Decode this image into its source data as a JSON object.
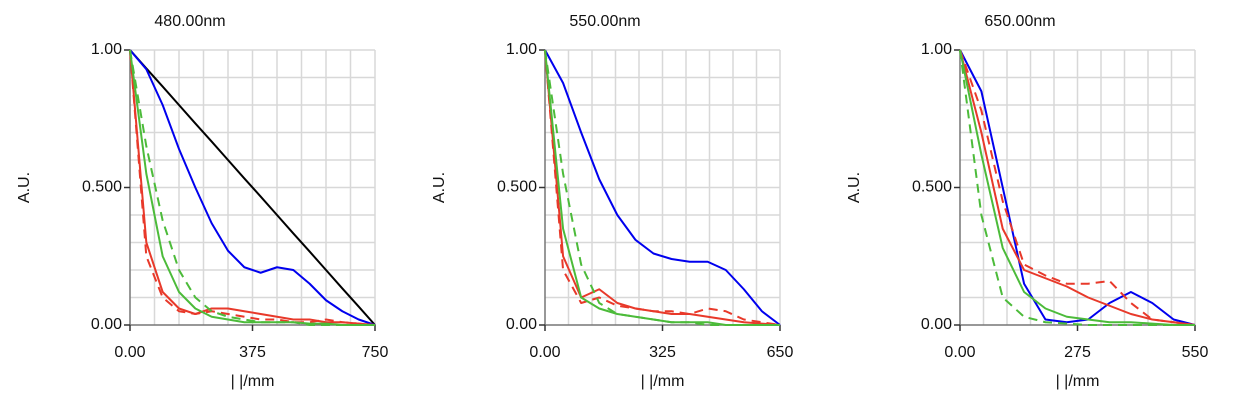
{
  "chart_data": [
    {
      "type": "line",
      "title": "480.00nm",
      "xlabel": "| |/mm",
      "ylabel": "A.U.",
      "x": [
        0,
        50,
        100,
        150,
        200,
        250,
        300,
        350,
        400,
        450,
        500,
        550,
        600,
        650,
        700,
        750
      ],
      "xlim": [
        0,
        750
      ],
      "xticks": [
        {
          "value": 0,
          "label": "0.00"
        },
        375,
        750
      ],
      "xgrid": [
        75,
        150,
        225,
        300,
        375,
        450,
        525,
        600,
        675,
        750
      ],
      "ylim": [
        0,
        1
      ],
      "yticks": [
        {
          "value": 0,
          "label": "0.00"
        },
        {
          "value": 0.5,
          "label": "0.500"
        },
        {
          "value": 1,
          "label": "1.00"
        }
      ],
      "ygrid": [
        0.1,
        0.2,
        0.3,
        0.4,
        0.5,
        0.6,
        0.7,
        0.8,
        0.9,
        1
      ],
      "series": [
        {
          "color": "#000000",
          "dash": false,
          "values": [
            1,
            0.933,
            0.867,
            0.8,
            0.733,
            0.667,
            0.6,
            0.533,
            0.467,
            0.4,
            0.333,
            0.267,
            0.2,
            0.133,
            0.067,
            0
          ]
        },
        {
          "color": "#0000ee",
          "dash": false,
          "values": [
            1,
            0.93,
            0.8,
            0.64,
            0.5,
            0.37,
            0.27,
            0.21,
            0.19,
            0.21,
            0.2,
            0.15,
            0.09,
            0.05,
            0.02,
            0
          ]
        },
        {
          "color": "#e8392a",
          "dash": false,
          "values": [
            1,
            0.3,
            0.12,
            0.06,
            0.04,
            0.06,
            0.06,
            0.05,
            0.04,
            0.03,
            0.02,
            0.02,
            0.01,
            0.01,
            0.005,
            0
          ]
        },
        {
          "color": "#e8392a",
          "dash": true,
          "values": [
            1,
            0.25,
            0.1,
            0.05,
            0.04,
            0.05,
            0.04,
            0.03,
            0.02,
            0.02,
            0.01,
            0.01,
            0.02,
            0.01,
            0.005,
            0
          ]
        },
        {
          "color": "#4cbb3a",
          "dash": false,
          "values": [
            1,
            0.55,
            0.25,
            0.12,
            0.06,
            0.03,
            0.02,
            0.01,
            0.01,
            0.01,
            0.01,
            0.005,
            0.005,
            0,
            0,
            0
          ]
        },
        {
          "color": "#4cbb3a",
          "dash": true,
          "values": [
            1,
            0.65,
            0.38,
            0.2,
            0.1,
            0.05,
            0.03,
            0.02,
            0.01,
            0.01,
            0.01,
            0,
            0,
            0,
            0,
            0
          ]
        }
      ]
    },
    {
      "type": "line",
      "title": "550.00nm",
      "xlabel": "| |/mm",
      "ylabel": "A.U.",
      "x": [
        0,
        50,
        100,
        150,
        200,
        250,
        300,
        350,
        400,
        450,
        500,
        550,
        600,
        650
      ],
      "xlim": [
        0,
        650
      ],
      "xticks": [
        {
          "value": 0,
          "label": "0.00"
        },
        325,
        650
      ],
      "xgrid": [
        65,
        130,
        195,
        260,
        325,
        390,
        455,
        520,
        585,
        650
      ],
      "ylim": [
        0,
        1
      ],
      "yticks": [
        {
          "value": 0,
          "label": "0.00"
        },
        {
          "value": 0.5,
          "label": "0.500"
        },
        {
          "value": 1,
          "label": "1.00"
        }
      ],
      "ygrid": [
        0.1,
        0.2,
        0.3,
        0.4,
        0.5,
        0.6,
        0.7,
        0.8,
        0.9,
        1
      ],
      "series": [
        {
          "color": "#0000ee",
          "dash": false,
          "values": [
            1,
            0.88,
            0.7,
            0.53,
            0.4,
            0.31,
            0.26,
            0.24,
            0.23,
            0.23,
            0.2,
            0.13,
            0.05,
            0
          ]
        },
        {
          "color": "#e8392a",
          "dash": false,
          "values": [
            1,
            0.25,
            0.1,
            0.13,
            0.08,
            0.06,
            0.05,
            0.04,
            0.04,
            0.03,
            0.02,
            0.01,
            0.005,
            0
          ]
        },
        {
          "color": "#e8392a",
          "dash": true,
          "values": [
            1,
            0.2,
            0.08,
            0.1,
            0.07,
            0.06,
            0.05,
            0.05,
            0.04,
            0.06,
            0.05,
            0.02,
            0.01,
            0
          ]
        },
        {
          "color": "#4cbb3a",
          "dash": false,
          "values": [
            1,
            0.35,
            0.1,
            0.06,
            0.04,
            0.03,
            0.02,
            0.01,
            0.01,
            0.01,
            0,
            0,
            0,
            0
          ]
        },
        {
          "color": "#4cbb3a",
          "dash": true,
          "values": [
            1,
            0.55,
            0.22,
            0.08,
            0.04,
            0.03,
            0.02,
            0.01,
            0.01,
            0,
            0,
            0,
            0,
            0
          ]
        }
      ]
    },
    {
      "type": "line",
      "title": "650.00nm",
      "xlabel": "| |/mm",
      "ylabel": "A.U.",
      "x": [
        0,
        50,
        100,
        150,
        200,
        250,
        300,
        350,
        400,
        450,
        500,
        550
      ],
      "xlim": [
        0,
        550
      ],
      "xticks": [
        {
          "value": 0,
          "label": "0.00"
        },
        275,
        550
      ],
      "xgrid": [
        55,
        110,
        165,
        220,
        275,
        330,
        385,
        440,
        495,
        550
      ],
      "ylim": [
        0,
        1
      ],
      "yticks": [
        {
          "value": 0,
          "label": "0.00"
        },
        {
          "value": 0.5,
          "label": "0.500"
        },
        {
          "value": 1,
          "label": "1.00"
        }
      ],
      "ygrid": [
        0.1,
        0.2,
        0.3,
        0.4,
        0.5,
        0.6,
        0.7,
        0.8,
        0.9,
        1
      ],
      "series": [
        {
          "color": "#0000ee",
          "dash": false,
          "values": [
            1,
            0.85,
            0.5,
            0.15,
            0.02,
            0.01,
            0.02,
            0.08,
            0.12,
            0.08,
            0.02,
            0
          ]
        },
        {
          "color": "#e8392a",
          "dash": false,
          "values": [
            1,
            0.7,
            0.35,
            0.2,
            0.17,
            0.14,
            0.1,
            0.07,
            0.04,
            0.02,
            0.01,
            0
          ]
        },
        {
          "color": "#e8392a",
          "dash": true,
          "values": [
            1,
            0.78,
            0.45,
            0.22,
            0.18,
            0.15,
            0.15,
            0.16,
            0.08,
            0.02,
            0.01,
            0
          ]
        },
        {
          "color": "#4cbb3a",
          "dash": false,
          "values": [
            1,
            0.62,
            0.28,
            0.12,
            0.06,
            0.03,
            0.02,
            0.01,
            0.01,
            0.005,
            0,
            0
          ]
        },
        {
          "color": "#4cbb3a",
          "dash": true,
          "values": [
            1,
            0.4,
            0.1,
            0.03,
            0.01,
            0.005,
            0,
            0,
            0,
            0,
            0,
            0
          ]
        }
      ]
    }
  ]
}
